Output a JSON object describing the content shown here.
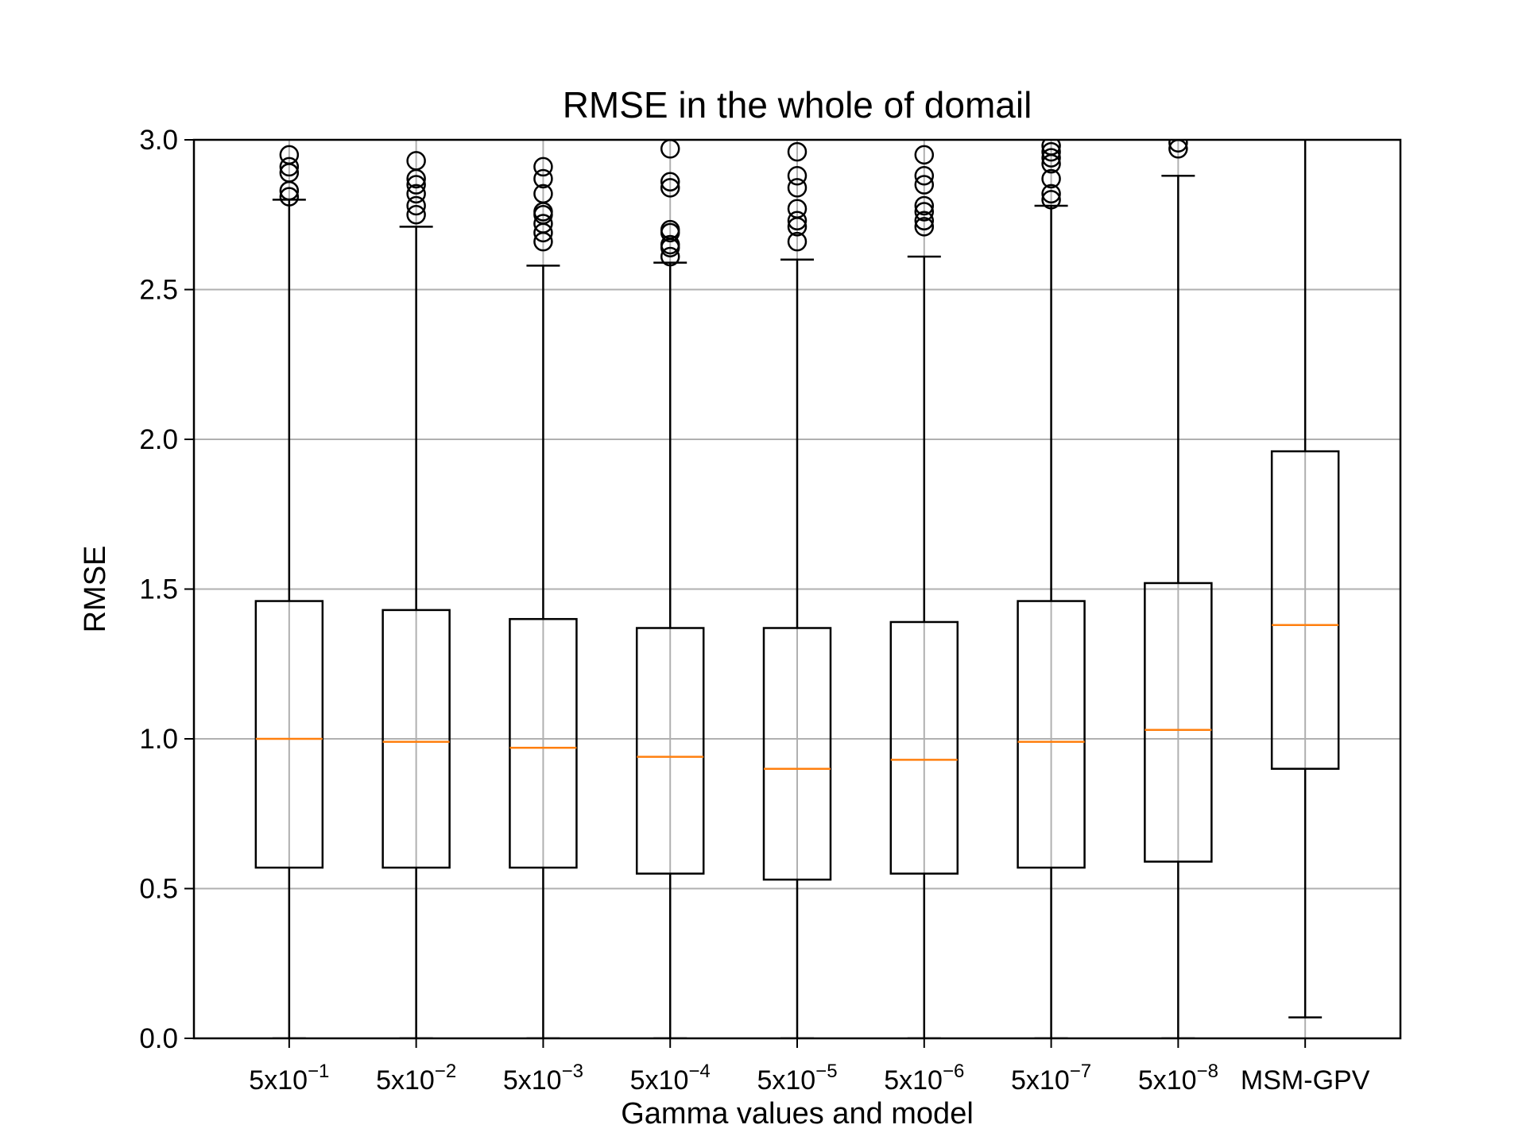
{
  "chart_data": {
    "type": "box",
    "title": "RMSE in the whole of domail",
    "xlabel": "Gamma values and model",
    "ylabel": "RMSE",
    "ylim": [
      0.0,
      3.0
    ],
    "yticks": [
      0.0,
      0.5,
      1.0,
      1.5,
      2.0,
      2.5,
      3.0
    ],
    "ytick_labels": [
      "0.0",
      "0.5",
      "1.0",
      "1.5",
      "2.0",
      "2.5",
      "3.0"
    ],
    "grid": true,
    "categories": [
      {
        "base": "5x10",
        "exp": "−1"
      },
      {
        "base": "5x10",
        "exp": "−2"
      },
      {
        "base": "5x10",
        "exp": "−3"
      },
      {
        "base": "5x10",
        "exp": "−4"
      },
      {
        "base": "5x10",
        "exp": "−5"
      },
      {
        "base": "5x10",
        "exp": "−6"
      },
      {
        "base": "5x10",
        "exp": "−7"
      },
      {
        "base": "5x10",
        "exp": "−8"
      },
      {
        "base": "MSM-GPV",
        "exp": ""
      }
    ],
    "boxes": [
      {
        "whislo": 0.0,
        "q1": 0.57,
        "median": 1.0,
        "q3": 1.46,
        "whishi": 2.8,
        "fliers": [
          2.81,
          2.83,
          2.89,
          2.91,
          2.95
        ]
      },
      {
        "whislo": 0.0,
        "q1": 0.57,
        "median": 0.99,
        "q3": 1.43,
        "whishi": 2.71,
        "fliers": [
          2.75,
          2.78,
          2.82,
          2.85,
          2.87,
          2.93
        ]
      },
      {
        "whislo": 0.0,
        "q1": 0.57,
        "median": 0.97,
        "q3": 1.4,
        "whishi": 2.58,
        "fliers": [
          2.66,
          2.69,
          2.72,
          2.75,
          2.76,
          2.82,
          2.87,
          2.91
        ]
      },
      {
        "whislo": 0.0,
        "q1": 0.55,
        "median": 0.94,
        "q3": 1.37,
        "whishi": 2.59,
        "fliers": [
          2.61,
          2.64,
          2.65,
          2.69,
          2.7,
          2.84,
          2.86,
          2.97
        ]
      },
      {
        "whislo": 0.0,
        "q1": 0.53,
        "median": 0.9,
        "q3": 1.37,
        "whishi": 2.6,
        "fliers": [
          2.66,
          2.71,
          2.73,
          2.77,
          2.84,
          2.88,
          2.96
        ]
      },
      {
        "whislo": 0.0,
        "q1": 0.55,
        "median": 0.93,
        "q3": 1.39,
        "whishi": 2.61,
        "fliers": [
          2.71,
          2.73,
          2.76,
          2.78,
          2.85,
          2.88,
          2.95
        ]
      },
      {
        "whislo": 0.0,
        "q1": 0.57,
        "median": 0.99,
        "q3": 1.46,
        "whishi": 2.78,
        "fliers": [
          2.8,
          2.82,
          2.87,
          2.92,
          2.94,
          2.96,
          2.98
        ]
      },
      {
        "whislo": 0.0,
        "q1": 0.59,
        "median": 1.03,
        "q3": 1.52,
        "whishi": 2.88,
        "fliers": [
          2.97,
          2.99
        ]
      },
      {
        "whislo": 0.07,
        "q1": 0.9,
        "median": 1.38,
        "q3": 1.96,
        "whishi": 3.05,
        "fliers": []
      }
    ],
    "colors": {
      "box": "#000000",
      "median": "#ff7f0e",
      "grid": "#b0b0b0"
    }
  }
}
